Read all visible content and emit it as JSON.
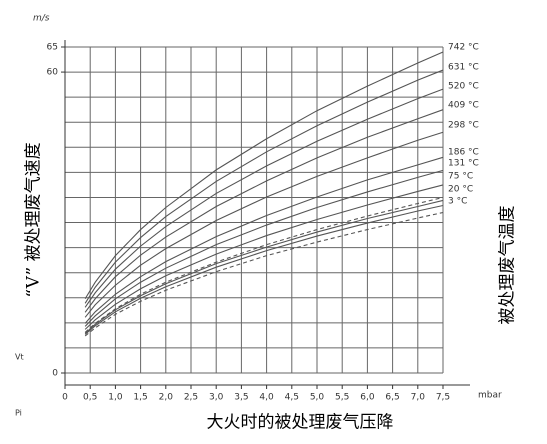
{
  "chart_data": {
    "type": "line",
    "y_unit": "m/s",
    "x_unit": "mbar",
    "y_symbol": "Vt",
    "x_symbol": "Pi",
    "ylabel": "“V” 被处理废气速度",
    "y2label": "被处理废气温度",
    "xlabel": "大火时的被处理废气压降",
    "xlim": [
      0,
      7.5
    ],
    "ylim": [
      0,
      65
    ],
    "xticks": [
      0,
      {
        "value": 0.5,
        "label": "0,5"
      },
      {
        "value": 1,
        "label": "1,0"
      },
      {
        "value": 1.5,
        "label": "1,5"
      },
      {
        "value": 2,
        "label": "2,0"
      },
      {
        "value": 2.5,
        "label": "2,5"
      },
      {
        "value": 3,
        "label": "3,0"
      },
      {
        "value": 3.5,
        "label": "3,5"
      },
      {
        "value": 4,
        "label": "4,0"
      },
      {
        "value": 4.5,
        "label": "4,5"
      },
      {
        "value": 5,
        "label": "5,0"
      },
      {
        "value": 5.5,
        "label": "5,5"
      },
      {
        "value": 6,
        "label": "6,0"
      },
      {
        "value": 6.5,
        "label": "6,5"
      },
      {
        "value": 7,
        "label": "7,0"
      },
      {
        "value": 7.5,
        "label": "7,5"
      }
    ],
    "yticks": [
      0,
      60,
      65
    ],
    "ygrid": [
      0,
      5,
      10,
      15,
      20,
      25,
      30,
      35,
      40,
      45,
      50,
      55,
      60,
      65
    ],
    "grid": true,
    "x": [
      0.4,
      0.6,
      1,
      1.5,
      2,
      3,
      4,
      5,
      6,
      7,
      7.5
    ],
    "series": [
      {
        "name": "742 °C",
        "color": "#555",
        "values": [
          14.8,
          18.1,
          23.4,
          28.6,
          33.0,
          40.5,
          46.7,
          52.3,
          57.2,
          61.8,
          64
        ]
      },
      {
        "name": "631 °C",
        "color": "#555",
        "values": [
          13.9,
          17.1,
          22.1,
          27.0,
          31.2,
          38.2,
          44.1,
          49.3,
          54.0,
          58.4,
          60.4
        ]
      },
      {
        "name": "520 °C",
        "color": "#555",
        "values": [
          13.1,
          16.0,
          20.7,
          25.3,
          29.2,
          35.8,
          41.3,
          46.2,
          50.6,
          54.7,
          56.6
        ]
      },
      {
        "name": "409 °C",
        "color": "#555",
        "values": [
          12.1,
          14.8,
          19.2,
          23.5,
          27.1,
          33.2,
          38.3,
          42.9,
          47.0,
          50.7,
          52.5
        ]
      },
      {
        "name": "298 °C",
        "color": "#555",
        "values": [
          11.1,
          13.6,
          17.5,
          21.5,
          24.8,
          30.4,
          35.1,
          39.2,
          42.9,
          46.4,
          48.0
        ]
      },
      {
        "name": "186 °C",
        "color": "#555",
        "values": [
          9.9,
          12.2,
          15.7,
          19.2,
          22.2,
          27.2,
          31.4,
          35.1,
          38.5,
          41.5,
          43.0
        ]
      },
      {
        "name": "131 °C",
        "color": "#555",
        "values": [
          9.3,
          11.4,
          14.8,
          18.1,
          20.9,
          25.6,
          29.5,
          33.0,
          36.1,
          39.0,
          40.4
        ]
      },
      {
        "name": "75 °C",
        "color": "#555",
        "values": [
          8.7,
          10.6,
          13.7,
          16.8,
          19.4,
          23.7,
          27.4,
          30.6,
          33.5,
          36.2,
          37.5
        ]
      },
      {
        "name": "20 °C",
        "color": "#555",
        "values": [
          7.9,
          9.7,
          12.6,
          15.4,
          17.8,
          21.8,
          25.1,
          28.1,
          30.8,
          33.2,
          34.4
        ]
      },
      {
        "name": "3 °C",
        "color": "#555",
        "values": [
          7.7,
          9.4,
          12.2,
          14.9,
          17.2,
          21.1,
          24.4,
          27.3,
          29.9,
          32.3,
          33.4
        ]
      },
      {
        "color": "#555",
        "dashed": true,
        "values": [
          8.1,
          9.9,
          12.8,
          15.7,
          18.1,
          22.1,
          25.6,
          28.6,
          31.3,
          33.8,
          35.0
        ]
      },
      {
        "color": "#555",
        "dashed": true,
        "values": [
          7.4,
          9.0,
          11.7,
          14.3,
          16.5,
          20.2,
          23.4,
          26.1,
          28.6,
          30.9,
          32.0
        ]
      }
    ]
  }
}
